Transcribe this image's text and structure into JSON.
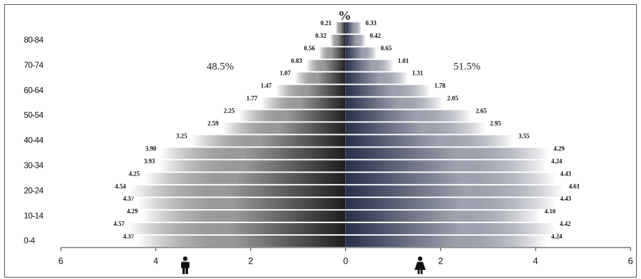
{
  "chart_data": {
    "type": "pyramid",
    "title": "%",
    "annotations": [
      "48.5%",
      "51.5%"
    ],
    "categories": [
      "0-4",
      null,
      "10-14",
      null,
      "20-24",
      null,
      "30-34",
      null,
      "40-44",
      null,
      "50-54",
      null,
      "60-64",
      null,
      "70-74",
      null,
      "80-84",
      null
    ],
    "series": [
      {
        "color": "#1e1e1e",
        "side": "left",
        "values": [
          4.37,
          4.57,
          4.29,
          4.37,
          4.54,
          4.25,
          3.93,
          3.9,
          3.25,
          2.59,
          2.25,
          1.77,
          1.47,
          1.07,
          0.83,
          0.56,
          0.32,
          0.21
        ],
        "value_labels": [
          "4.37",
          "4.57",
          "4.29",
          "4.37",
          "4.54",
          "4.25",
          "3.93",
          "3.90",
          "3.25",
          "2.59",
          "2.25",
          "1.77",
          "1.47",
          "1.07",
          "0.83",
          "0.56",
          "0.32",
          "0.21"
        ]
      },
      {
        "color": "#27304a",
        "side": "right",
        "values": [
          4.24,
          4.42,
          4.1,
          4.43,
          4.61,
          4.43,
          4.24,
          4.29,
          3.55,
          2.95,
          2.65,
          2.05,
          1.78,
          1.31,
          1.01,
          0.65,
          0.42,
          0.33
        ],
        "value_labels": [
          "4.24",
          "4.42",
          "4.10",
          "4.43",
          "4.61",
          "4.43",
          "4.24",
          "4.29",
          "3.55",
          "2.95",
          "2.65",
          "2.05",
          "1.78",
          "1.31",
          "1.01",
          "0.65",
          "0.42",
          "0.33"
        ]
      }
    ],
    "xlim": [
      -6,
      6
    ],
    "xticks": [
      {
        "value": -6,
        "label": "6"
      },
      {
        "value": -4,
        "label": "4"
      },
      {
        "value": -2,
        "label": "2"
      },
      0,
      2,
      4,
      6
    ]
  }
}
